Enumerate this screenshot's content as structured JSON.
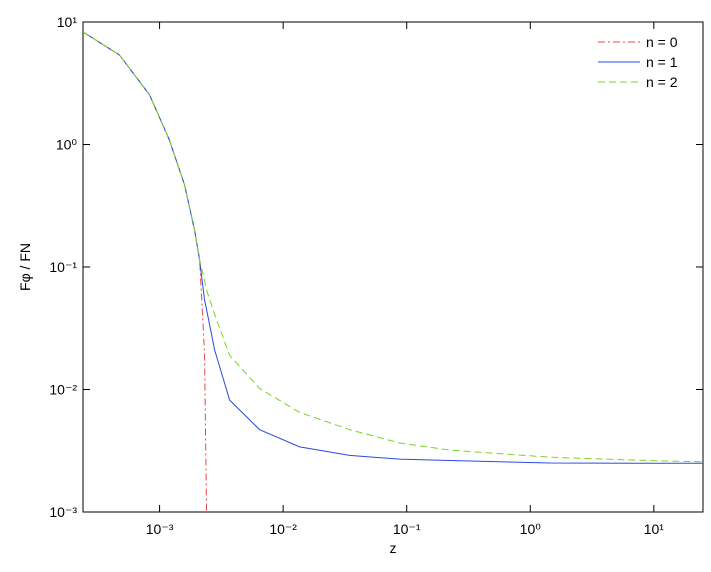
{
  "chart_data": {
    "type": "line",
    "xlabel": "z",
    "ylabel": "Fφ / FN",
    "xscale": "log",
    "yscale": "log",
    "xlim": [
      0.00024,
      25
    ],
    "ylim": [
      0.001,
      10
    ],
    "xticks": [
      {
        "value": 0.001,
        "label": "10⁻³"
      },
      {
        "value": 0.01,
        "label": "10⁻²"
      },
      {
        "value": 0.1,
        "label": "10⁻¹"
      },
      {
        "value": 1,
        "label": "10⁰"
      },
      {
        "value": 10,
        "label": "10¹"
      }
    ],
    "yticks": [
      {
        "value": 0.001,
        "label": "10⁻³"
      },
      {
        "value": 0.01,
        "label": "10⁻²"
      },
      {
        "value": 0.1,
        "label": "10⁻¹"
      },
      {
        "value": 1,
        "label": "10⁰"
      },
      {
        "value": 10,
        "label": "10¹"
      }
    ],
    "legend": "upper right",
    "x": [
      0.00024,
      0.000474,
      0.00083,
      0.0012,
      0.00159,
      0.00192,
      0.00211,
      0.00231,
      0.0024,
      0.00279,
      0.00369,
      0.00645,
      0.0136,
      0.0345,
      0.0877,
      0.224,
      1.45,
      9.3,
      25
    ],
    "series": [
      {
        "name": "n = 0",
        "color": "#e8474a",
        "style": "dash-dot",
        "values": [
          8.3,
          5.37,
          2.54,
          1.09,
          0.47,
          0.2,
          0.114,
          0.02,
          0.001,
          null,
          null,
          null,
          null,
          null,
          null,
          null,
          null,
          null,
          null
        ]
      },
      {
        "name": "n = 1",
        "color": "#2a4be0",
        "style": "solid",
        "values": [
          8.3,
          5.37,
          2.54,
          1.09,
          0.47,
          0.2,
          0.114,
          0.054,
          0.045,
          0.021,
          0.0082,
          0.0047,
          0.0034,
          0.0029,
          0.0027,
          0.00263,
          0.00251,
          0.0025,
          0.0025
        ]
      },
      {
        "name": "n = 2",
        "color": "#7ed321",
        "style": "dashed",
        "values": [
          8.3,
          5.37,
          2.54,
          1.09,
          0.47,
          0.2,
          0.114,
          0.078,
          0.065,
          0.041,
          0.019,
          0.0102,
          0.0065,
          0.0047,
          0.00366,
          0.0032,
          0.0028,
          0.00263,
          0.00257
        ]
      }
    ]
  }
}
